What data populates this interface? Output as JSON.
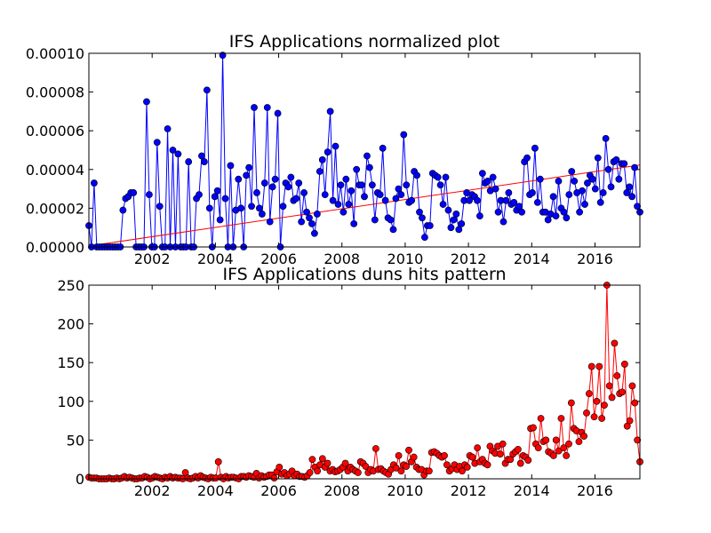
{
  "chart_data": [
    {
      "type": "line",
      "title": "IFS Applications normalized plot",
      "xlabel": "",
      "ylabel": "",
      "xlim": [
        2000.0,
        2017.42
      ],
      "ylim": [
        0.0,
        0.0001
      ],
      "xticks": [
        2002,
        2004,
        2006,
        2008,
        2010,
        2012,
        2014,
        2016
      ],
      "yticks": [
        0.0,
        2e-05,
        4e-05,
        6e-05,
        8e-05,
        0.0001
      ],
      "ytick_labels": [
        "0.00000",
        "0.00002",
        "0.00004",
        "0.00006",
        "0.00008",
        "0.00010"
      ],
      "grid": false,
      "series": [
        {
          "color": "#0000ff",
          "marker": "circle",
          "values": [
            1.1e-05,
            0.0,
            3.3e-05,
            0.0,
            0.0,
            0.0,
            0.0,
            0.0,
            0.0,
            0.0,
            0.0,
            0.0,
            0.0,
            1.9e-05,
            2.5e-05,
            2.6e-05,
            2.8e-05,
            2.8e-05,
            0.0,
            0.0,
            0.0,
            0.0,
            7.5e-05,
            2.7e-05,
            0.0,
            0.0,
            5.4e-05,
            2.1e-05,
            0.0,
            0.0,
            6.1e-05,
            0.0,
            5e-05,
            0.0,
            4.8e-05,
            0.0,
            0.0,
            0.0,
            4.4e-05,
            0.0,
            0.0,
            2.5e-05,
            2.7e-05,
            4.7e-05,
            4.4e-05,
            8.1e-05,
            2e-05,
            0.0,
            2.6e-05,
            2.9e-05,
            1.4e-05,
            9.9e-05,
            2.5e-05,
            0.0,
            4.2e-05,
            0.0,
            1.9e-05,
            3.5e-05,
            2e-05,
            0.0,
            3.7e-05,
            4.1e-05,
            2.1e-05,
            7.2e-05,
            2.8e-05,
            2e-05,
            1.7e-05,
            3.3e-05,
            7.2e-05,
            1.3e-05,
            3.1e-05,
            3.5e-05,
            6.9e-05,
            0.0,
            2.1e-05,
            3.3e-05,
            3.1e-05,
            3.6e-05,
            2.4e-05,
            2.5e-05,
            3.3e-05,
            1.3e-05,
            2.8e-05,
            1.8e-05,
            1.5e-05,
            1.2e-05,
            7e-06,
            1.7e-05,
            3.9e-05,
            4.5e-05,
            2.7e-05,
            4.9e-05,
            7e-05,
            2.4e-05,
            5.2e-05,
            2.2e-05,
            3.2e-05,
            1.8e-05,
            3.5e-05,
            2.2e-05,
            2.9e-05,
            1.2e-05,
            4e-05,
            3.2e-05,
            3.2e-05,
            2.6e-05,
            4.7e-05,
            4.1e-05,
            3.2e-05,
            1.4e-05,
            2.8e-05,
            2.7e-05,
            5.1e-05,
            2.4e-05,
            1.5e-05,
            1.4e-05,
            9e-06,
            2.5e-05,
            3e-05,
            2.7e-05,
            5.8e-05,
            3.2e-05,
            2.3e-05,
            2.4e-05,
            3.9e-05,
            3.7e-05,
            1.8e-05,
            1.5e-05,
            5e-06,
            1.1e-05,
            1.1e-05,
            3.8e-05,
            3.7e-05,
            3.6e-05,
            3.2e-05,
            2.2e-05,
            3.6e-05,
            1.9e-05,
            1e-05,
            1.4e-05,
            1.7e-05,
            9e-06,
            1.2e-05,
            2.4e-05,
            2.8e-05,
            2.4e-05,
            2.7e-05,
            2.6e-05,
            2.4e-05,
            1.6e-05,
            3.8e-05,
            3.3e-05,
            3.4e-05,
            2.9e-05,
            3.6e-05,
            3e-05,
            1.8e-05,
            2.4e-05,
            1.3e-05,
            2.4e-05,
            2.8e-05,
            2.2e-05,
            2.3e-05,
            1.9e-05,
            2.1e-05,
            1.8e-05,
            4.4e-05,
            4.6e-05,
            2.7e-05,
            2.8e-05,
            5.1e-05,
            2.3e-05,
            3.5e-05,
            1.8e-05,
            1.8e-05,
            1.4e-05,
            1.7e-05,
            2.6e-05,
            1.6e-05,
            3.4e-05,
            2e-05,
            1.8e-05,
            1.5e-05,
            2.7e-05,
            3.9e-05,
            3.4e-05,
            2.8e-05,
            1.8e-05,
            2.9e-05,
            2.2e-05,
            3.3e-05,
            3.7e-05,
            3.5e-05,
            3e-05,
            4.6e-05,
            2.3e-05,
            2.8e-05,
            5.6e-05,
            4e-05,
            3.1e-05,
            4.4e-05,
            4.5e-05,
            3.5e-05,
            4.3e-05,
            4.3e-05,
            2.8e-05,
            3.1e-05,
            2.6e-05,
            4.1e-05,
            2.1e-05,
            1.8e-05
          ]
        },
        {
          "color": "#ff0000",
          "marker": "none",
          "values": [
            5e-07,
            4.23e-05
          ]
        }
      ]
    },
    {
      "type": "line",
      "title": "IFS Applications duns hits pattern",
      "xlabel": "",
      "ylabel": "",
      "xlim": [
        2000.0,
        2017.42
      ],
      "ylim": [
        0,
        250
      ],
      "xticks": [
        2002,
        2004,
        2006,
        2008,
        2010,
        2012,
        2014,
        2016
      ],
      "yticks": [
        0,
        50,
        100,
        150,
        200,
        250
      ],
      "ytick_labels": [
        "0",
        "50",
        "100",
        "150",
        "200",
        "250"
      ],
      "grid": false,
      "series": [
        {
          "color": "#ff0000",
          "marker": "circle",
          "values": [
            2,
            1,
            1,
            1,
            0,
            0,
            0,
            0,
            1,
            0,
            0,
            1,
            0,
            1,
            3,
            1,
            2,
            1,
            0,
            0,
            1,
            1,
            3,
            2,
            0,
            1,
            3,
            2,
            1,
            0,
            2,
            1,
            3,
            1,
            2,
            1,
            1,
            0,
            8,
            1,
            0,
            1,
            3,
            1,
            4,
            2,
            1,
            0,
            2,
            1,
            1,
            22,
            2,
            0,
            3,
            1,
            2,
            2,
            1,
            0,
            3,
            3,
            2,
            4,
            3,
            2,
            7,
            1,
            4,
            2,
            3,
            5,
            5,
            1,
            9,
            15,
            6,
            8,
            4,
            6,
            10,
            4,
            6,
            3,
            3,
            2,
            4,
            8,
            25,
            15,
            10,
            18,
            26,
            15,
            20,
            10,
            12,
            9,
            10,
            12,
            15,
            20,
            10,
            15,
            12,
            10,
            8,
            22,
            20,
            16,
            8,
            12,
            10,
            39,
            12,
            13,
            10,
            8,
            6,
            12,
            18,
            14,
            30,
            10,
            18,
            16,
            37,
            22,
            28,
            15,
            12,
            12,
            5,
            10,
            10,
            34,
            35,
            33,
            30,
            28,
            30,
            18,
            10,
            13,
            18,
            12,
            16,
            10,
            18,
            15,
            30,
            28,
            20,
            40,
            22,
            25,
            20,
            18,
            42,
            36,
            33,
            42,
            32,
            45,
            20,
            25,
            25,
            32,
            35,
            38,
            20,
            30,
            28,
            24,
            65,
            66,
            45,
            40,
            78,
            48,
            50,
            35,
            33,
            30,
            50,
            36,
            78,
            40,
            30,
            45,
            98,
            65,
            62,
            48,
            60,
            55,
            85,
            110,
            145,
            80,
            100,
            145,
            78,
            95,
            250,
            120,
            105,
            175,
            133,
            110,
            112,
            148,
            68,
            75,
            120,
            98,
            50,
            22
          ]
        }
      ]
    }
  ]
}
